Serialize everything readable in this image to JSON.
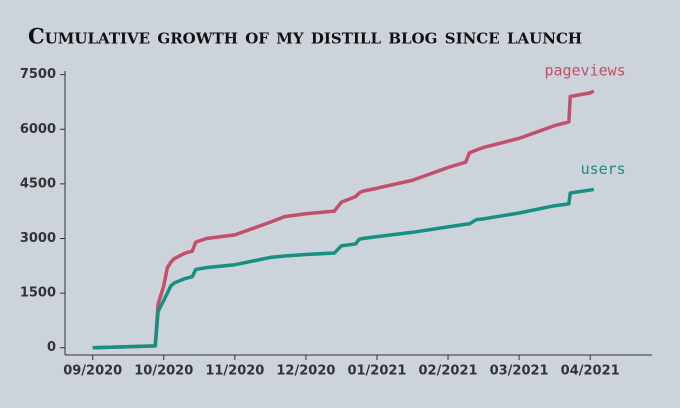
{
  "chart_data": {
    "type": "line",
    "title": "Cumulative growth of my distill blog since launch",
    "x": [
      0,
      0.88,
      0.92,
      1.0,
      1.05,
      1.1,
      1.15,
      1.3,
      1.4,
      1.45,
      1.6,
      2.0,
      2.5,
      2.7,
      3.0,
      3.4,
      3.5,
      3.7,
      3.75,
      3.8,
      4.0,
      4.5,
      5.0,
      5.25,
      5.3,
      5.4,
      5.5,
      6.0,
      6.5,
      6.7,
      6.72,
      7.0,
      7.05
    ],
    "series": [
      {
        "name": "pageviews",
        "color": "#c24f6b",
        "values": [
          0,
          50,
          1200,
          1700,
          2200,
          2350,
          2450,
          2600,
          2650,
          2900,
          3000,
          3100,
          3450,
          3600,
          3680,
          3750,
          4000,
          4150,
          4250,
          4300,
          4380,
          4600,
          4950,
          5100,
          5350,
          5430,
          5500,
          5750,
          6100,
          6200,
          6900,
          7000,
          7050
        ]
      },
      {
        "name": "users",
        "color": "#16907f",
        "values": [
          0,
          50,
          1000,
          1300,
          1500,
          1700,
          1780,
          1900,
          1950,
          2150,
          2200,
          2280,
          2480,
          2520,
          2560,
          2600,
          2800,
          2850,
          2980,
          3000,
          3050,
          3170,
          3320,
          3390,
          3400,
          3520,
          3540,
          3700,
          3900,
          3950,
          4250,
          4330,
          4350
        ]
      }
    ],
    "xlim": [
      -0.39,
      7.87
    ],
    "xticks": [
      {
        "value": 0,
        "label": "09/2020"
      },
      {
        "value": 1,
        "label": "10/2020"
      },
      {
        "value": 2,
        "label": "11/2020"
      },
      {
        "value": 3,
        "label": "12/2020"
      },
      {
        "value": 4,
        "label": "01/2021"
      },
      {
        "value": 5,
        "label": "02/2021"
      },
      {
        "value": 6,
        "label": "03/2021"
      },
      {
        "value": 7,
        "label": "04/2021"
      }
    ],
    "ylim": [
      -200,
      7600
    ],
    "yticks": [
      0,
      1500,
      3000,
      4500,
      6000,
      7500
    ]
  }
}
